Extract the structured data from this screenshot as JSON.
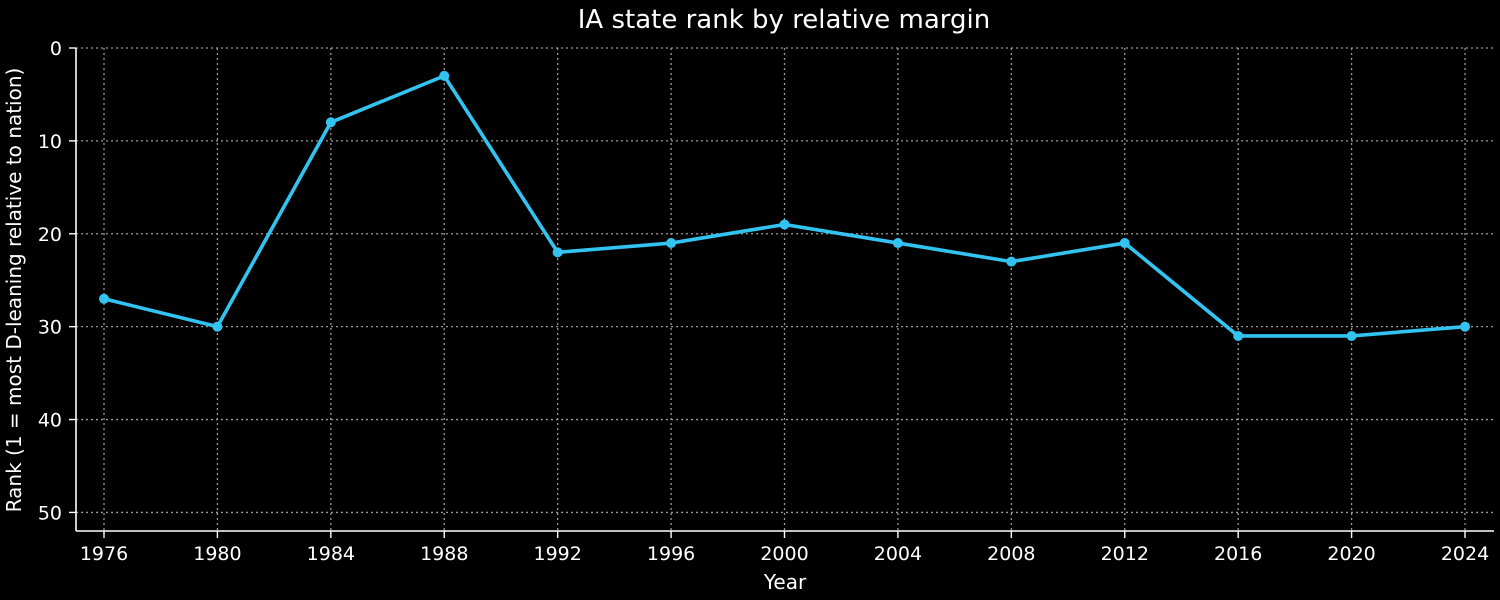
{
  "chart_data": {
    "type": "line",
    "title": "IA state rank by relative margin",
    "xlabel": "Year",
    "ylabel": "Rank (1 = most D-leaning relative to nation)",
    "x": [
      1976,
      1980,
      1984,
      1988,
      1992,
      1996,
      2000,
      2004,
      2008,
      2012,
      2016,
      2020,
      2024
    ],
    "series": [
      {
        "values": [
          27,
          30,
          8,
          3,
          22,
          21,
          19,
          21,
          23,
          21,
          31,
          31,
          30
        ],
        "color": "#33c3f0"
      }
    ],
    "xticks": [
      "1976",
      "1980",
      "1984",
      "1988",
      "1992",
      "1996",
      "2000",
      "2004",
      "2008",
      "2012",
      "2016",
      "2020",
      "2024"
    ],
    "yticks": [
      "0",
      "10",
      "20",
      "30",
      "40",
      "50"
    ],
    "ylim": [
      0,
      52
    ],
    "y_inverted": true,
    "grid": true,
    "background": "#000000"
  }
}
